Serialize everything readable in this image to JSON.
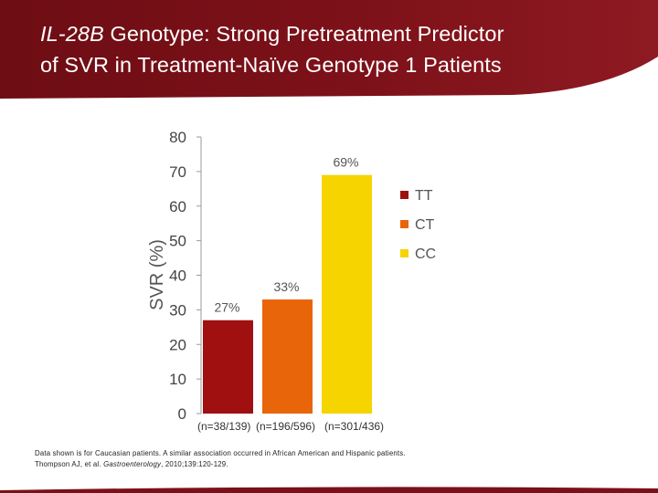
{
  "header": {
    "title_italic": "IL-28B",
    "title_line1_rest": " Genotype: Strong Pretreatment Predictor",
    "title_line2": "of SVR in Treatment-Naïve Genotype 1 Patients",
    "bg_color": "#7a1018"
  },
  "chart_data": {
    "type": "bar",
    "ylabel": "SVR (%)",
    "ylim": [
      0,
      80
    ],
    "yticks": [
      0,
      10,
      20,
      30,
      40,
      50,
      60,
      70,
      80
    ],
    "bars": [
      {
        "genotype": "TT",
        "value": 27,
        "label": "27%",
        "n": "(n=38/139)",
        "color": "#a01010"
      },
      {
        "genotype": "CT",
        "value": 33,
        "label": "33%",
        "n": "(n=196/596)",
        "color": "#e8650a"
      },
      {
        "genotype": "CC",
        "value": 69,
        "label": "69%",
        "n": "(n=301/436)",
        "color": "#f5d400"
      }
    ],
    "legend": [
      "TT",
      "CT",
      "CC"
    ],
    "legend_position": "right"
  },
  "footnote": {
    "line1": "Data shown is for Caucasian patients. A similar association occurred in African American and Hispanic patients.",
    "line2_prefix": "Thompson AJ, et al. ",
    "line2_journal": "Gastroenterology",
    "line2_suffix": ", 2010;139:120-129."
  }
}
